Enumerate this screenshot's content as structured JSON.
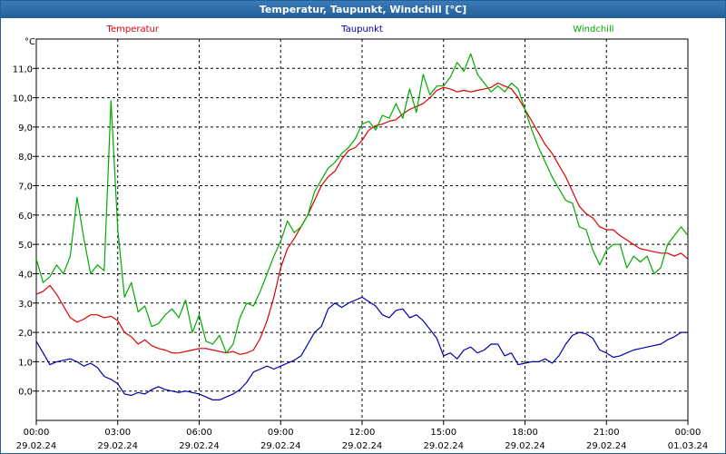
{
  "window": {
    "title": "Temperatur, Taupunkt, Windchill [°C]"
  },
  "chart_data": {
    "type": "line",
    "title": "Temperatur, Taupunkt, Windchill [°C]",
    "ylabel": "°C",
    "xlabel": "",
    "ylim": [
      -1.0,
      12.0
    ],
    "yticks": [
      0,
      1,
      2,
      3,
      4,
      5,
      6,
      7,
      8,
      9,
      10,
      11
    ],
    "ytick_labels": [
      "0,0",
      "1,0",
      "2,0",
      "3,0",
      "4,0",
      "5,0",
      "6,0",
      "7,0",
      "8,0",
      "9,0",
      "10,0",
      "11,0"
    ],
    "xlim": [
      0,
      24
    ],
    "xticks": [
      {
        "x": 0,
        "time": "00:00",
        "date": "29.02.24"
      },
      {
        "x": 3,
        "time": "03:00",
        "date": "29.02.24"
      },
      {
        "x": 6,
        "time": "06:00",
        "date": "29.02.24"
      },
      {
        "x": 9,
        "time": "09:00",
        "date": "29.02.24"
      },
      {
        "x": 12,
        "time": "12:00",
        "date": "29.02.24"
      },
      {
        "x": 15,
        "time": "15:00",
        "date": "29.02.24"
      },
      {
        "x": 18,
        "time": "18:00",
        "date": "29.02.24"
      },
      {
        "x": 21,
        "time": "21:00",
        "date": "29.02.24"
      },
      {
        "x": 24,
        "time": "00:00",
        "date": "01.03.24"
      }
    ],
    "grid": true,
    "legend": "top",
    "series": [
      {
        "name": "Temperatur",
        "color": "#dd0000",
        "x": [
          0,
          0.25,
          0.5,
          0.75,
          1,
          1.25,
          1.5,
          1.75,
          2,
          2.25,
          2.5,
          2.75,
          3,
          3.25,
          3.5,
          3.75,
          4,
          4.25,
          4.5,
          4.75,
          5,
          5.25,
          5.5,
          5.75,
          6,
          6.25,
          6.5,
          6.75,
          7,
          7.25,
          7.5,
          7.75,
          8,
          8.25,
          8.5,
          8.75,
          9,
          9.25,
          9.5,
          9.75,
          10,
          10.25,
          10.5,
          10.75,
          11,
          11.25,
          11.5,
          11.75,
          12,
          12.25,
          12.5,
          12.75,
          13,
          13.25,
          13.5,
          13.75,
          14,
          14.25,
          14.5,
          14.75,
          15,
          15.25,
          15.5,
          15.75,
          16,
          16.25,
          16.5,
          16.75,
          17,
          17.25,
          17.5,
          17.75,
          18,
          18.25,
          18.5,
          18.75,
          19,
          19.25,
          19.5,
          19.75,
          20,
          20.25,
          20.5,
          20.75,
          21,
          21.25,
          21.5,
          21.75,
          22,
          22.25,
          22.5,
          22.75,
          23,
          23.25,
          23.5,
          23.75,
          24
        ],
        "values": [
          3.3,
          3.4,
          3.6,
          3.3,
          2.9,
          2.5,
          2.35,
          2.45,
          2.6,
          2.6,
          2.5,
          2.55,
          2.4,
          2.0,
          1.85,
          1.6,
          1.75,
          1.55,
          1.45,
          1.4,
          1.3,
          1.3,
          1.35,
          1.4,
          1.45,
          1.45,
          1.4,
          1.35,
          1.3,
          1.35,
          1.25,
          1.3,
          1.4,
          1.8,
          2.4,
          3.2,
          4.2,
          4.85,
          5.2,
          5.6,
          6.0,
          6.5,
          7.0,
          7.3,
          7.5,
          7.9,
          8.2,
          8.3,
          8.55,
          8.9,
          9.05,
          9.1,
          9.2,
          9.25,
          9.45,
          9.6,
          9.7,
          9.8,
          10.0,
          10.25,
          10.35,
          10.3,
          10.2,
          10.25,
          10.2,
          10.25,
          10.3,
          10.35,
          10.5,
          10.4,
          10.3,
          10.0,
          9.6,
          9.2,
          8.8,
          8.4,
          8.1,
          7.7,
          7.3,
          6.8,
          6.3,
          6.05,
          5.9,
          5.6,
          5.5,
          5.5,
          5.3,
          5.15,
          5.0,
          4.85,
          4.8,
          4.75,
          4.7,
          4.7,
          4.6,
          4.7,
          4.5
        ]
      },
      {
        "name": "Taupunkt",
        "color": "#0000aa",
        "x": [
          0,
          0.25,
          0.5,
          0.75,
          1,
          1.25,
          1.5,
          1.75,
          2,
          2.25,
          2.5,
          2.75,
          3,
          3.25,
          3.5,
          3.75,
          4,
          4.25,
          4.5,
          4.75,
          5,
          5.25,
          5.5,
          5.75,
          6,
          6.25,
          6.5,
          6.75,
          7,
          7.25,
          7.5,
          7.75,
          8,
          8.25,
          8.5,
          8.75,
          9,
          9.25,
          9.5,
          9.75,
          10,
          10.25,
          10.5,
          10.75,
          11,
          11.25,
          11.5,
          11.75,
          12,
          12.25,
          12.5,
          12.75,
          13,
          13.25,
          13.5,
          13.75,
          14,
          14.25,
          14.5,
          14.75,
          15,
          15.25,
          15.5,
          15.75,
          16,
          16.25,
          16.5,
          16.75,
          17,
          17.25,
          17.5,
          17.75,
          18,
          18.25,
          18.5,
          18.75,
          19,
          19.25,
          19.5,
          19.75,
          20,
          20.25,
          20.5,
          20.75,
          21,
          21.25,
          21.5,
          21.75,
          22,
          22.25,
          22.5,
          22.75,
          23,
          23.25,
          23.5,
          23.75,
          24
        ],
        "values": [
          1.7,
          1.3,
          0.9,
          1.0,
          1.05,
          1.1,
          1.0,
          0.85,
          0.95,
          0.8,
          0.5,
          0.4,
          0.25,
          -0.1,
          -0.15,
          -0.05,
          -0.1,
          0.05,
          0.15,
          0.05,
          0.0,
          -0.05,
          0.0,
          -0.05,
          -0.1,
          -0.2,
          -0.3,
          -0.3,
          -0.2,
          -0.1,
          0.05,
          0.3,
          0.65,
          0.75,
          0.85,
          0.75,
          0.85,
          0.95,
          1.05,
          1.2,
          1.6,
          2.0,
          2.2,
          2.8,
          3.0,
          2.85,
          3.0,
          3.1,
          3.2,
          3.05,
          2.9,
          2.6,
          2.5,
          2.75,
          2.8,
          2.5,
          2.6,
          2.4,
          2.1,
          1.8,
          1.2,
          1.3,
          1.1,
          1.4,
          1.5,
          1.3,
          1.4,
          1.6,
          1.6,
          1.2,
          1.3,
          0.9,
          0.95,
          1.0,
          1.0,
          1.1,
          0.95,
          1.2,
          1.6,
          1.9,
          2.0,
          1.95,
          1.8,
          1.4,
          1.3,
          1.15,
          1.2,
          1.3,
          1.4,
          1.45,
          1.5,
          1.55,
          1.6,
          1.75,
          1.85,
          2.0,
          2.0
        ]
      },
      {
        "name": "Windchill",
        "color": "#00aa00",
        "x": [
          0,
          0.25,
          0.5,
          0.75,
          1,
          1.25,
          1.5,
          1.75,
          2,
          2.25,
          2.5,
          2.75,
          3,
          3.25,
          3.5,
          3.75,
          4,
          4.25,
          4.5,
          4.75,
          5,
          5.25,
          5.5,
          5.75,
          6,
          6.25,
          6.5,
          6.75,
          7,
          7.25,
          7.5,
          7.75,
          8,
          8.25,
          8.5,
          8.75,
          9,
          9.25,
          9.5,
          9.75,
          10,
          10.25,
          10.5,
          10.75,
          11,
          11.25,
          11.5,
          11.75,
          12,
          12.25,
          12.5,
          12.75,
          13,
          13.25,
          13.5,
          13.75,
          14,
          14.25,
          14.5,
          14.75,
          15,
          15.25,
          15.5,
          15.75,
          16,
          16.25,
          16.5,
          16.75,
          17,
          17.25,
          17.5,
          17.75,
          18,
          18.25,
          18.5,
          18.75,
          19,
          19.25,
          19.5,
          19.75,
          20,
          20.25,
          20.5,
          20.75,
          21,
          21.25,
          21.5,
          21.75,
          22,
          22.25,
          22.5,
          22.75,
          23,
          23.25,
          23.5,
          23.75,
          24
        ],
        "values": [
          4.5,
          3.7,
          3.9,
          4.3,
          4.0,
          4.6,
          6.6,
          5.2,
          4.0,
          4.3,
          4.1,
          9.9,
          5.5,
          3.2,
          3.7,
          2.7,
          2.9,
          2.2,
          2.3,
          2.6,
          2.8,
          2.5,
          3.1,
          2.0,
          2.6,
          1.7,
          1.6,
          1.9,
          1.3,
          1.6,
          2.5,
          3.0,
          2.9,
          3.4,
          4.0,
          4.6,
          5.1,
          5.8,
          5.4,
          5.6,
          6.0,
          6.8,
          7.2,
          7.6,
          7.8,
          8.1,
          8.3,
          8.6,
          9.1,
          9.2,
          8.9,
          9.4,
          9.3,
          9.8,
          9.3,
          10.3,
          9.5,
          10.8,
          10.1,
          10.4,
          10.4,
          10.7,
          11.2,
          10.9,
          11.5,
          10.8,
          10.5,
          10.2,
          10.4,
          10.2,
          10.5,
          10.3,
          9.6,
          8.9,
          8.3,
          7.8,
          7.3,
          6.9,
          6.5,
          6.4,
          5.6,
          5.5,
          4.8,
          4.3,
          4.8,
          5.0,
          5.0,
          4.2,
          4.6,
          4.4,
          4.6,
          4.0,
          4.2,
          5.0,
          5.3,
          5.6,
          5.3
        ]
      }
    ]
  }
}
